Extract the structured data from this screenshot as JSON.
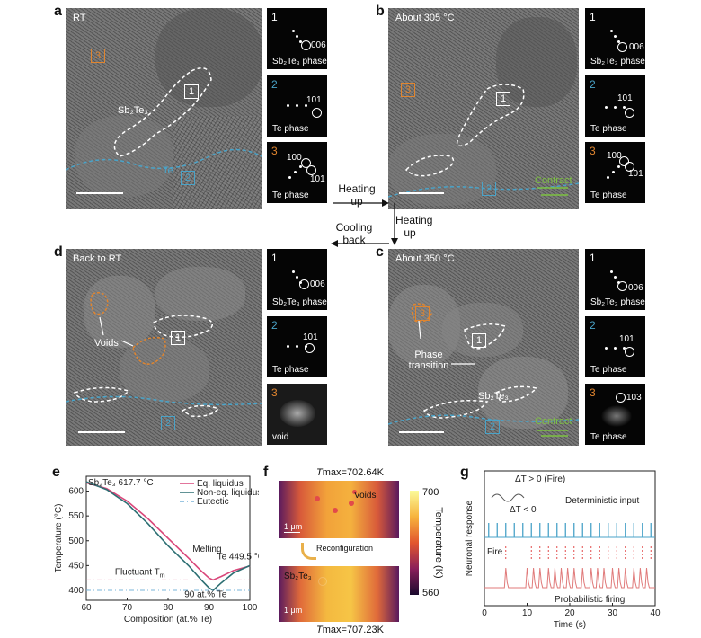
{
  "panels": {
    "a": {
      "letter": "a",
      "title": "RT",
      "phase_label": "Sb₂Te₃",
      "te_label": "Te",
      "box1": "1",
      "box2": "2",
      "box3": "3",
      "ffts": [
        {
          "num": "1",
          "hkl": [
            "006"
          ],
          "phase": "Sb₂Te₃ phase"
        },
        {
          "num": "2",
          "hkl": [
            "101"
          ],
          "phase": "Te phase"
        },
        {
          "num": "3",
          "hkl": [
            "100",
            "101"
          ],
          "phase": "Te phase"
        }
      ]
    },
    "b": {
      "letter": "b",
      "title": "About 305 °C",
      "contract": "Contract",
      "box1": "1",
      "box2": "2",
      "box3": "3",
      "ffts": [
        {
          "num": "1",
          "hkl": [
            "006"
          ],
          "phase": "Sb₂Te₃ phase"
        },
        {
          "num": "2",
          "hkl": [
            "101"
          ],
          "phase": "Te phase"
        },
        {
          "num": "3",
          "hkl": [
            "100",
            "101"
          ],
          "phase": "Te phase"
        }
      ]
    },
    "c": {
      "letter": "c",
      "title": "About 350 °C",
      "phase_transition": "Phase transition",
      "phase_label": "Sb₂Te₃",
      "contract": "Contract",
      "box1": "1",
      "box2": "2",
      "box3": "3",
      "ffts": [
        {
          "num": "1",
          "hkl": [
            "006"
          ],
          "phase": "Sb₂Te₃ phase"
        },
        {
          "num": "2",
          "hkl": [
            "101"
          ],
          "phase": "Te phase"
        },
        {
          "num": "3",
          "hkl": [
            "103"
          ],
          "phase": "Te phase"
        }
      ]
    },
    "d": {
      "letter": "d",
      "title": "Back to RT",
      "voids": "Voids",
      "box1": "1",
      "box2": "2",
      "box3": "3",
      "ffts": [
        {
          "num": "1",
          "hkl": [
            "006"
          ],
          "phase": "Sb₂Te₃ phase"
        },
        {
          "num": "2",
          "hkl": [
            "101"
          ],
          "phase": "Te phase"
        },
        {
          "num": "3",
          "hkl": [],
          "phase": "void"
        }
      ]
    }
  },
  "arrows": {
    "heating1": "Heating up",
    "heating2": "Heating up",
    "cooling": "Cooling back"
  },
  "panel_e": {
    "letter": "e",
    "annot_left": "Sb₂Te₃ 617.7 °C",
    "annot_te": "Te 449.5 °C",
    "melting": "Melting",
    "fluctuant": "Fluctuant T",
    "fluctuant_sub": "m",
    "eut_comp": "90 at.% Te"
  },
  "panel_f": {
    "letter": "f",
    "tmax_top": "T",
    "tmax_top_val": "max=702.64K",
    "tmax_bot_val": "max=707.23K",
    "voids": "Voids",
    "reconfig": "Reconfiguration",
    "sb2te3": "Sb₂Te₃",
    "scale_top": "1 μm",
    "scale_bot": "1 μm",
    "cbar_label": "Temperature (K)",
    "cbar_max": "700",
    "cbar_min": "560"
  },
  "panel_g": {
    "letter": "g",
    "dt_fire": "ΔT > 0 (Fire)",
    "dt_neg": "ΔT < 0",
    "det_input": "Deterministic input",
    "fire": "Fire",
    "prob": "Probabilistic firing"
  },
  "colors": {
    "orange": "#e0852f",
    "blue": "#4aa3c8",
    "green": "#7dc241",
    "pink": "#d9477a",
    "teal": "#2d6f73",
    "lightblue": "#79b4d8",
    "red": "#e24a4a"
  },
  "chart_data": [
    {
      "type": "line",
      "title": "",
      "xlabel": "Composition (at.% Te)",
      "ylabel": "Temperature (°C)",
      "xlim": [
        60,
        100
      ],
      "ylim": [
        380,
        630
      ],
      "xticks": [
        60,
        70,
        80,
        90,
        100
      ],
      "yticks": [
        400,
        450,
        500,
        550,
        600
      ],
      "series": [
        {
          "name": "Eq. liquidus",
          "x": [
            60,
            65,
            70,
            75,
            80,
            85,
            88,
            90,
            91,
            93,
            96,
            100
          ],
          "y": [
            617,
            605,
            580,
            545,
            505,
            465,
            440,
            425,
            421,
            428,
            440,
            449
          ]
        },
        {
          "name": "Non-eq. liquidus",
          "x": [
            60,
            65,
            70,
            75,
            80,
            85,
            88,
            90,
            91,
            93,
            96,
            100
          ],
          "y": [
            619,
            603,
            575,
            535,
            490,
            450,
            422,
            405,
            400,
            415,
            435,
            450
          ]
        },
        {
          "name": "Eutectic",
          "x": [
            60,
            100
          ],
          "y": [
            400,
            400
          ]
        },
        {
          "name": "",
          "x": [
            60,
            100
          ],
          "y": [
            421,
            421
          ]
        }
      ]
    },
    {
      "type": "line",
      "title": "",
      "xlabel": "Time (s)",
      "ylabel": "Neuronal response",
      "xlim": [
        0,
        40
      ],
      "xticks": [
        0,
        10,
        20,
        30,
        40
      ],
      "deterministic_spikes": [
        1,
        3,
        5,
        7,
        9,
        11,
        13,
        15,
        17,
        19,
        21,
        23,
        25,
        27,
        29,
        31,
        33,
        35,
        37,
        39
      ],
      "fire_marks": [
        5,
        11,
        13,
        15,
        17,
        19,
        21,
        23,
        25,
        27,
        29,
        31,
        33,
        35,
        37,
        39
      ],
      "probabilistic_peaks": [
        5,
        10,
        11.5,
        13,
        15,
        16.5,
        18,
        19.5,
        21,
        23,
        25,
        26.5,
        28,
        30,
        31.5,
        33,
        35,
        36.5,
        38
      ]
    }
  ]
}
